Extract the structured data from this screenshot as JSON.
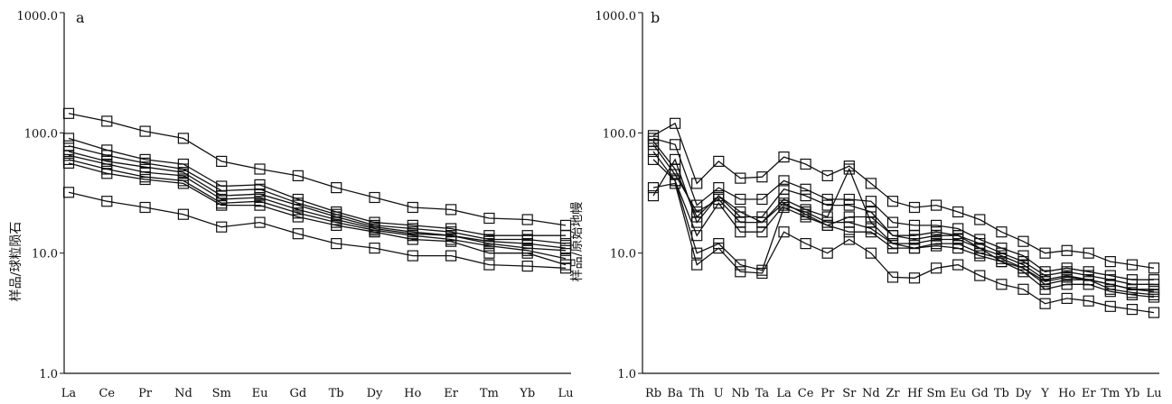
{
  "chart_data": [
    {
      "type": "line",
      "panel_label": "a",
      "ylabel": "样品/球粒陨石",
      "xlabel": "",
      "yscale": "log",
      "ylim": [
        1.0,
        1000.0
      ],
      "ytick_labels": [
        "1.0",
        "10.0",
        "100.0",
        "1000.0"
      ],
      "yticks": [
        1,
        10,
        100,
        1000
      ],
      "grid": false,
      "legend": "none",
      "marker": "open-square",
      "categories": [
        "La",
        "Ce",
        "Pr",
        "Nd",
        "Sm",
        "Eu",
        "Gd",
        "Tb",
        "Dy",
        "Ho",
        "Er",
        "Tm",
        "Yb",
        "Lu"
      ],
      "series": [
        {
          "values": [
            145,
            125,
            103,
            90,
            58,
            50,
            44,
            35,
            29,
            24,
            23,
            19.5,
            19,
            17
          ]
        },
        {
          "values": [
            90,
            72,
            60,
            55,
            36,
            37,
            28,
            22,
            18,
            17,
            16,
            14,
            14,
            14
          ]
        },
        {
          "values": [
            78,
            65,
            56,
            50,
            33,
            34,
            26,
            21,
            17,
            16,
            15,
            13,
            13,
            12
          ]
        },
        {
          "values": [
            70,
            58,
            52,
            47,
            30,
            31,
            25,
            20,
            16.5,
            15,
            14,
            12.5,
            12,
            11
          ]
        },
        {
          "values": [
            65,
            55,
            47,
            44,
            28,
            29,
            23,
            19,
            16,
            14.5,
            14,
            12,
            11,
            10.5
          ]
        },
        {
          "values": [
            60,
            50,
            43,
            40,
            26,
            27,
            21.5,
            18,
            15.5,
            14,
            13,
            11.5,
            10.5,
            9
          ]
        },
        {
          "values": [
            56,
            46,
            41,
            38,
            25,
            25,
            20,
            17,
            15,
            13,
            12.5,
            10,
            10,
            8
          ]
        },
        {
          "values": [
            32,
            27,
            24,
            21,
            16.5,
            18,
            14.5,
            12,
            11,
            9.5,
            9.5,
            8,
            7.8,
            7.5
          ]
        }
      ]
    },
    {
      "type": "line",
      "panel_label": "b",
      "ylabel": "样品/原始地幔",
      "xlabel": "",
      "yscale": "log",
      "ylim": [
        1.0,
        1000.0
      ],
      "ytick_labels": [
        "1.0",
        "10.0",
        "100.0",
        "1000.0"
      ],
      "yticks": [
        1,
        10,
        100,
        1000
      ],
      "grid": false,
      "legend": "none",
      "marker": "open-square",
      "categories": [
        "Rb",
        "Ba",
        "Th",
        "U",
        "Nb",
        "Ta",
        "La",
        "Ce",
        "Pr",
        "Sr",
        "Nd",
        "Zr",
        "Hf",
        "Sm",
        "Eu",
        "Gd",
        "Tb",
        "Dy",
        "Y",
        "Ho",
        "Er",
        "Tm",
        "Yb",
        "Lu"
      ],
      "series": [
        {
          "values": [
            95,
            120,
            38,
            58,
            42,
            43,
            63,
            55,
            44,
            53,
            38,
            27,
            24,
            25,
            22,
            19,
            15,
            12.5,
            10,
            10.5,
            10,
            8.5,
            8,
            7.5
          ]
        },
        {
          "values": [
            90,
            80,
            25,
            35,
            28,
            28,
            40,
            34,
            28,
            28,
            27,
            18,
            17,
            17,
            16,
            13,
            11,
            9.5,
            7,
            7.5,
            7,
            6.5,
            6,
            6
          ]
        },
        {
          "values": [
            85,
            50,
            20,
            30,
            20,
            20,
            34,
            30,
            25,
            25,
            22,
            14,
            14,
            15,
            14,
            12,
            10,
            8.5,
            6.5,
            7,
            6.5,
            6,
            5.5,
            5.5
          ]
        },
        {
          "values": [
            80,
            45,
            22,
            28,
            18,
            18,
            28,
            23,
            20,
            50,
            18,
            12,
            12,
            13,
            13,
            11,
            9.5,
            8,
            6,
            6.5,
            6,
            5.5,
            5,
            5
          ]
        },
        {
          "values": [
            70,
            40,
            14,
            26,
            15,
            15,
            25,
            22,
            18,
            18,
            16,
            12,
            11,
            12,
            12,
            10,
            9,
            7.5,
            5.5,
            6,
            6,
            5,
            4.7,
            4.5
          ]
        },
        {
          "values": [
            60,
            40,
            10,
            12,
            8,
            7.2,
            24,
            20,
            17,
            15,
            15,
            11,
            11,
            11.5,
            11,
            9.5,
            8.5,
            7,
            5,
            5.5,
            5.5,
            4.8,
            4.5,
            4.3
          ]
        },
        {
          "values": [
            35,
            38,
            8,
            11,
            7,
            6.8,
            15,
            12,
            10,
            13,
            10,
            6.3,
            6.2,
            7.5,
            8,
            6.5,
            5.5,
            5,
            3.8,
            4.2,
            4,
            3.6,
            3.4,
            3.2
          ]
        },
        {
          "values": [
            30,
            60,
            18,
            30,
            22,
            18,
            26,
            21,
            17,
            20,
            20,
            14,
            13,
            14,
            14,
            11,
            8.5,
            7.5,
            5.8,
            6.3,
            6,
            5.5,
            5,
            4.8
          ]
        }
      ]
    }
  ]
}
